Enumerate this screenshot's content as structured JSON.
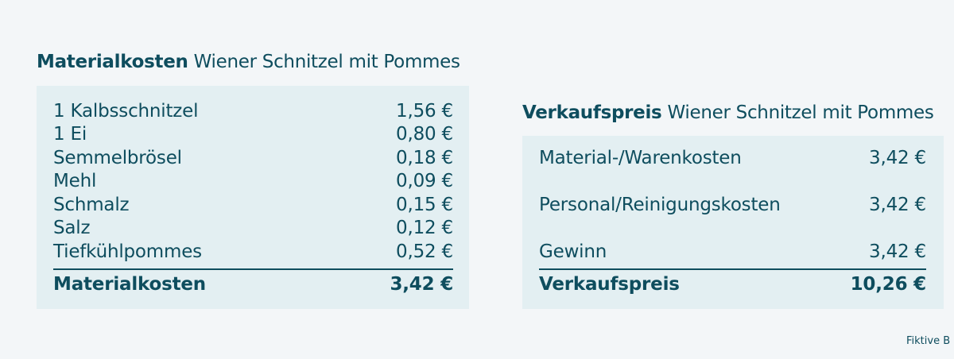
{
  "material": {
    "heading_bold": "Materialkosten",
    "heading_rest": "Wiener Schnitzel mit Pommes",
    "items": [
      {
        "label": "1 Kalbsschnitzel",
        "value": "1,56 €"
      },
      {
        "label": "1 Ei",
        "value": "0,80 €"
      },
      {
        "label": "Semmelbrösel",
        "value": "0,18 €"
      },
      {
        "label": "Mehl",
        "value": "0,09 €"
      },
      {
        "label": "Schmalz",
        "value": "0,15 €"
      },
      {
        "label": "Salz",
        "value": "0,12 €"
      },
      {
        "label": "Tiefkühlpommes",
        "value": "0,52 €"
      }
    ],
    "total_label": "Materialkosten",
    "total_value": "3,42 €"
  },
  "sale": {
    "heading_bold": "Verkaufspreis",
    "heading_rest": "Wiener Schnitzel mit Pommes",
    "items": [
      {
        "label": "Material-/Warenkosten",
        "value": "3,42 €"
      },
      {
        "label": "Personal/Reinigungskosten",
        "value": "3,42 €"
      },
      {
        "label": "Gewinn",
        "value": "3,42 €"
      }
    ],
    "total_label": "Verkaufspreis",
    "total_value": "10,26 €"
  },
  "footnote": "Fiktive B",
  "colors": {
    "text": "#0e4d5e",
    "card_background": "#e3eff2",
    "page_background": "#f3f6f8"
  }
}
